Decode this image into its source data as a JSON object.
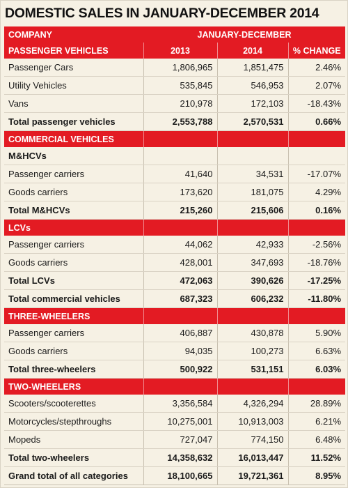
{
  "title": "DOMESTIC SALES IN JANUARY-DECEMBER 2014",
  "header": {
    "company": "COMPANY",
    "period": "JANUARY-DECEMBER"
  },
  "passenger": {
    "section": "PASSENGER VEHICLES",
    "col_2013": "2013",
    "col_2014": "2014",
    "col_change": "% CHANGE",
    "rows": [
      {
        "name": "Passenger Cars",
        "y2013": "1,806,965",
        "y2014": "1,851,475",
        "change": "2.46%"
      },
      {
        "name": "Utility Vehicles",
        "y2013": "535,845",
        "y2014": "546,953",
        "change": "2.07%"
      },
      {
        "name": "Vans",
        "y2013": "210,978",
        "y2014": "172,103",
        "change": "-18.43%"
      }
    ],
    "total": {
      "name": "Total passenger vehicles",
      "y2013": "2,553,788",
      "y2014": "2,570,531",
      "change": "0.66%"
    }
  },
  "commercial": {
    "section": "COMMERCIAL VEHICLES",
    "mhcv": {
      "label": "M&HCVs",
      "rows": [
        {
          "name": "Passenger carriers",
          "y2013": "41,640",
          "y2014": "34,531",
          "change": "-17.07%"
        },
        {
          "name": "Goods carriers",
          "y2013": "173,620",
          "y2014": "181,075",
          "change": "4.29%"
        }
      ],
      "total": {
        "name": "Total M&HCVs",
        "y2013": "215,260",
        "y2014": "215,606",
        "change": "0.16%"
      }
    },
    "lcv": {
      "section": "LCVs",
      "rows": [
        {
          "name": "Passenger carriers",
          "y2013": "44,062",
          "y2014": "42,933",
          "change": "-2.56%"
        },
        {
          "name": "Goods carriers",
          "y2013": "428,001",
          "y2014": "347,693",
          "change": "-18.76%"
        }
      ],
      "total": {
        "name": "Total LCVs",
        "y2013": "472,063",
        "y2014": "390,626",
        "change": "-17.25%"
      }
    },
    "total": {
      "name": "Total commercial vehicles",
      "y2013": "687,323",
      "y2014": "606,232",
      "change": "-11.80%"
    }
  },
  "three_wheelers": {
    "section": "THREE-WHEELERS",
    "rows": [
      {
        "name": "Passenger carriers",
        "y2013": "406,887",
        "y2014": "430,878",
        "change": "5.90%"
      },
      {
        "name": "Goods carriers",
        "y2013": "94,035",
        "y2014": "100,273",
        "change": "6.63%"
      }
    ],
    "total": {
      "name": "Total three-wheelers",
      "y2013": "500,922",
      "y2014": "531,151",
      "change": "6.03%"
    }
  },
  "two_wheelers": {
    "section": "TWO-WHEELERS",
    "rows": [
      {
        "name": "Scooters/scooterettes",
        "y2013": "3,356,584",
        "y2014": "4,326,294",
        "change": "28.89%"
      },
      {
        "name": "Motorcycles/stepthroughs",
        "y2013": "10,275,001",
        "y2014": "10,913,003",
        "change": "6.21%"
      },
      {
        "name": "Mopeds",
        "y2013": "727,047",
        "y2014": "774,150",
        "change": "6.48%"
      }
    ],
    "total": {
      "name": "Total two-wheelers",
      "y2013": "14,358,632",
      "y2014": "16,013,447",
      "change": "11.52%"
    }
  },
  "grand_total": {
    "name": "Grand total of all categories",
    "y2013": "18,100,665",
    "y2014": "19,721,361",
    "change": "8.95%"
  },
  "colors": {
    "band": "#e31b23",
    "background": "#f6f1e4"
  }
}
